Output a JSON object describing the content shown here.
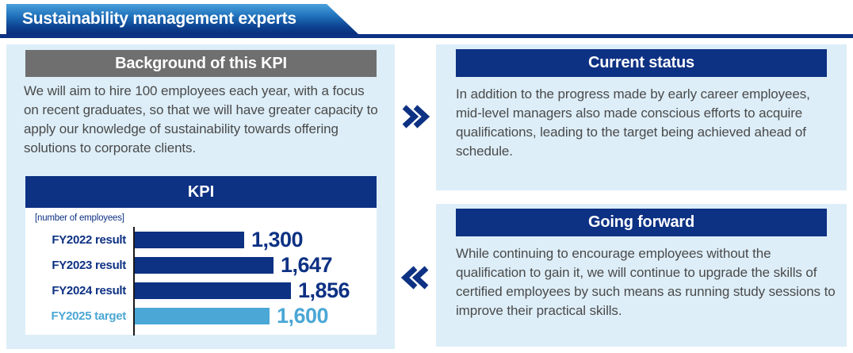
{
  "banner": {
    "title": "Sustainability management experts"
  },
  "background_panel": {
    "header": "Background of this KPI",
    "body": "We will aim to hire 100 employees each year, with a focus on recent graduates, so that we will have greater capacity to apply our knowledge of sustainability towards offering solutions to corporate clients."
  },
  "kpi_panel": {
    "header": "KPI",
    "unit_label": "[number of employees]"
  },
  "chart_data": {
    "type": "bar",
    "orientation": "horizontal",
    "title": "KPI",
    "unit_label": "[number of employees]",
    "categories": [
      "FY2022 result",
      "FY2023 result",
      "FY2024 result",
      "FY2025 target"
    ],
    "values": [
      1300,
      1647,
      1856,
      1600
    ],
    "value_labels": [
      "1,300",
      "1,647",
      "1,856",
      "1,600"
    ],
    "bar_colors": [
      "#0d3183",
      "#0d3183",
      "#0d3183",
      "#4ba7d5"
    ],
    "label_colors": [
      "#0d3183",
      "#0d3183",
      "#0d3183",
      "#4ba7d5"
    ],
    "xlim": [
      0,
      1900
    ],
    "grid": false,
    "legend": false
  },
  "current_status_panel": {
    "header": "Current status",
    "body": "In addition to the progress made by early career employees, mid-level managers also made conscious efforts to acquire qualifications, leading to the target being achieved ahead of schedule."
  },
  "going_forward_panel": {
    "header": "Going forward",
    "body": "While continuing to encourage employees without the qualification to gain it, we will continue to upgrade the skills of certified employees by such means as running study sessions to improve their practical skills."
  },
  "colors": {
    "navy": "#0d3183",
    "light_blue": "#4ba7d5",
    "panel_bg": "#ddeef8",
    "gray_header": "#6f6f6f",
    "body_text": "#4a4a4a",
    "banner_gradient_top": "#4aa0db",
    "banner_gradient_bottom": "#0a2e7c"
  }
}
